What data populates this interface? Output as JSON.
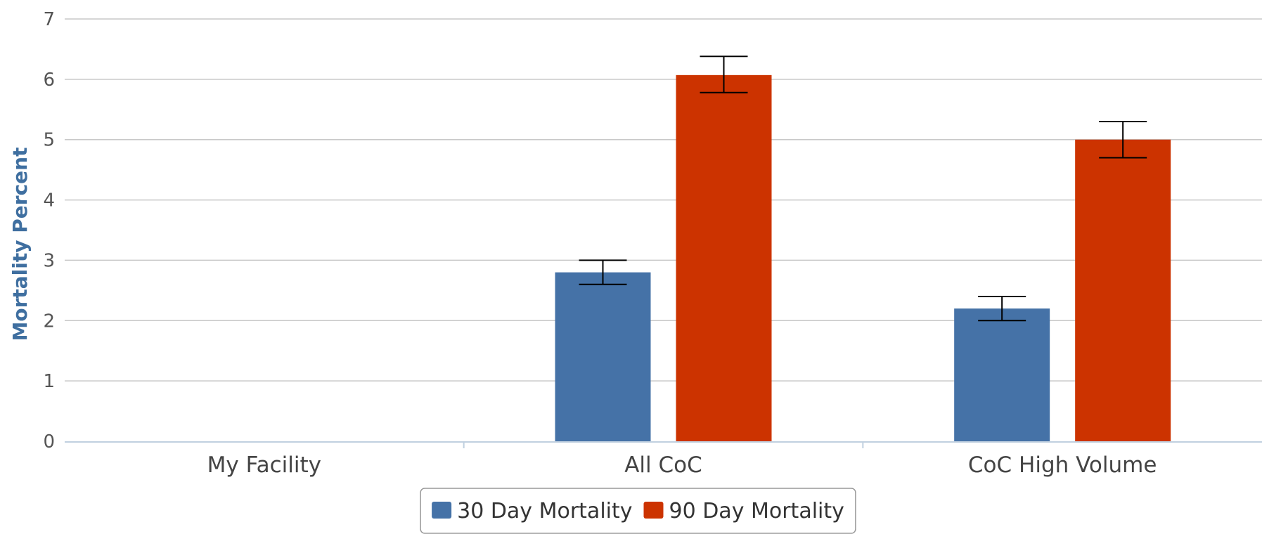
{
  "chart_data": {
    "type": "bar",
    "title": "",
    "xlabel": "",
    "ylabel": "Mortality Percent",
    "ylim": [
      0,
      7
    ],
    "yticks": [
      0,
      1,
      2,
      3,
      4,
      5,
      6,
      7
    ],
    "grid": true,
    "legend_position": "bottom-center",
    "categories": [
      "My Facility",
      "All CoC",
      "CoC High Volume"
    ],
    "series": [
      {
        "name": "30 Day Mortality",
        "color": "#4572a7",
        "values": [
          null,
          2.8,
          2.2
        ],
        "error_low": [
          null,
          2.6,
          2.0
        ],
        "error_high": [
          null,
          3.0,
          2.4
        ]
      },
      {
        "name": "90 Day Mortality",
        "color": "#cc3300",
        "values": [
          null,
          6.07,
          5.0
        ],
        "error_low": [
          null,
          5.78,
          4.7
        ],
        "error_high": [
          null,
          6.38,
          5.3
        ]
      }
    ]
  }
}
